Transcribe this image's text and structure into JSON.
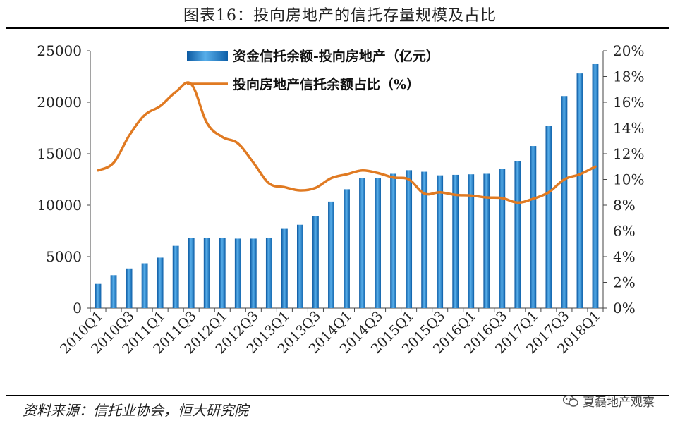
{
  "title": "图表16：投向房地产的信托存量规模及占比",
  "source": "资料来源：信托业协会，恒大研究院",
  "watermark": "夏磊地产观察",
  "colors": {
    "bar": "#1a7fd0",
    "bar_dark": "#0d5fa8",
    "bar_light": "#62b3ee",
    "line": "#e07a22"
  },
  "chart_data": {
    "type": "bar",
    "categories": [
      "2010Q1",
      "2010Q2",
      "2010Q3",
      "2010Q4",
      "2011Q1",
      "2011Q2",
      "2011Q3",
      "2011Q4",
      "2012Q1",
      "2012Q2",
      "2012Q3",
      "2012Q4",
      "2013Q1",
      "2013Q2",
      "2013Q3",
      "2013Q4",
      "2014Q1",
      "2014Q2",
      "2014Q3",
      "2014Q4",
      "2015Q1",
      "2015Q2",
      "2015Q3",
      "2015Q4",
      "2016Q1",
      "2016Q2",
      "2016Q3",
      "2016Q4",
      "2017Q1",
      "2017Q2",
      "2017Q3",
      "2017Q4",
      "2018Q1"
    ],
    "x_tick_labels": [
      "2010Q1",
      "2010Q3",
      "2011Q1",
      "2011Q3",
      "2012Q1",
      "2012Q3",
      "2013Q1",
      "2013Q3",
      "2014Q1",
      "2014Q3",
      "2015Q1",
      "2015Q3",
      "2016Q1",
      "2016Q3",
      "2017Q1",
      "2017Q3",
      "2018Q1"
    ],
    "series": [
      {
        "name": "资金信托余额-投向房地产（亿元）",
        "type": "bar",
        "axis": "left",
        "values": [
          2350,
          3200,
          3850,
          4350,
          4900,
          6050,
          6800,
          6850,
          6850,
          6750,
          6750,
          6850,
          7700,
          8100,
          8950,
          10350,
          11550,
          12650,
          12650,
          13050,
          13400,
          13250,
          12900,
          12950,
          13000,
          13050,
          13550,
          14250,
          15750,
          17700,
          20600,
          22800,
          23700
        ]
      },
      {
        "name": "投向房地产信托余额占比（%）",
        "type": "line",
        "axis": "right",
        "values": [
          10.7,
          11.3,
          13.4,
          15.0,
          15.7,
          16.8,
          17.4,
          14.4,
          13.3,
          12.8,
          11.3,
          9.7,
          9.4,
          9.15,
          9.35,
          10.1,
          10.4,
          10.7,
          10.5,
          10.15,
          10.0,
          8.9,
          9.0,
          8.8,
          8.75,
          8.6,
          8.55,
          8.2,
          8.5,
          9.0,
          10.0,
          10.4,
          11.0
        ]
      }
    ],
    "y_left": {
      "min": 0,
      "max": 25000,
      "ticks": [
        "0",
        "5000",
        "10000",
        "15000",
        "20000",
        "25000"
      ]
    },
    "y_right": {
      "min": 0,
      "max": 20,
      "ticks": [
        "0%",
        "2%",
        "4%",
        "6%",
        "8%",
        "10%",
        "12%",
        "14%",
        "16%",
        "18%",
        "20%"
      ]
    },
    "legend": {
      "position": "top-center"
    }
  }
}
